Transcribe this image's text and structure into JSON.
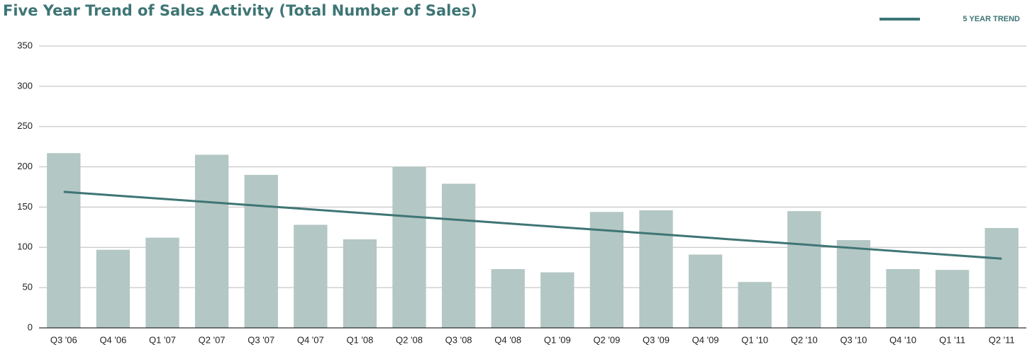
{
  "chart_data": {
    "type": "bar",
    "title": "Five Year Trend of Sales Activity (Total Number of Sales)",
    "categories": [
      "Q3 '06",
      "Q4 '06",
      "Q1 '07",
      "Q2 '07",
      "Q3 '07",
      "Q4 '07",
      "Q1 '08",
      "Q2 '08",
      "Q3 '08",
      "Q4 '08",
      "Q1 '09",
      "Q2 '09",
      "Q3 '09",
      "Q4 '09",
      "Q1 '10",
      "Q2 '10",
      "Q3 '10",
      "Q4 '10",
      "Q1 '11",
      "Q2 '11"
    ],
    "values": [
      217,
      97,
      112,
      215,
      190,
      128,
      110,
      200,
      179,
      73,
      69,
      144,
      146,
      91,
      57,
      145,
      109,
      73,
      72,
      124
    ],
    "color": "#b3c7c4",
    "trend": {
      "name": "5 YEAR TREND",
      "color": "#3f7575",
      "values": [
        169,
        164.6,
        160.3,
        155.9,
        151.5,
        147.2,
        142.8,
        138.4,
        134.1,
        129.7,
        125.3,
        121,
        116.6,
        112.2,
        107.8,
        103.5,
        99.1,
        94.7,
        90.4,
        86
      ]
    },
    "ylim": [
      0,
      350
    ],
    "yticks": [
      0,
      50,
      100,
      150,
      200,
      250,
      300,
      350
    ],
    "grid": true,
    "legend": "top-right"
  }
}
